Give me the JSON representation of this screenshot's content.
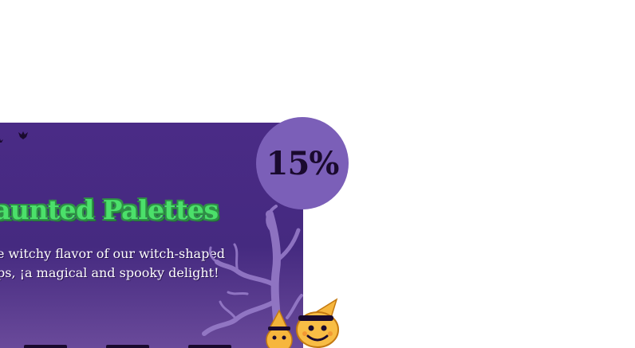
{
  "promo": {
    "title": "aunted Palettes",
    "description_line1": "e witchy flavor of our witch-shaped",
    "description_line2": "ps, ¡a magical and spooky delight!",
    "discount": "15%"
  },
  "icons": {
    "bat": "bat-icon",
    "tree": "spooky-tree-illustration",
    "mascots": "witch-candy-mascots"
  },
  "colors": {
    "card_bg": "#452a80",
    "title_green": "#4be06a",
    "badge_bg": "#7b5fb8",
    "badge_text": "#1a0a2e"
  }
}
